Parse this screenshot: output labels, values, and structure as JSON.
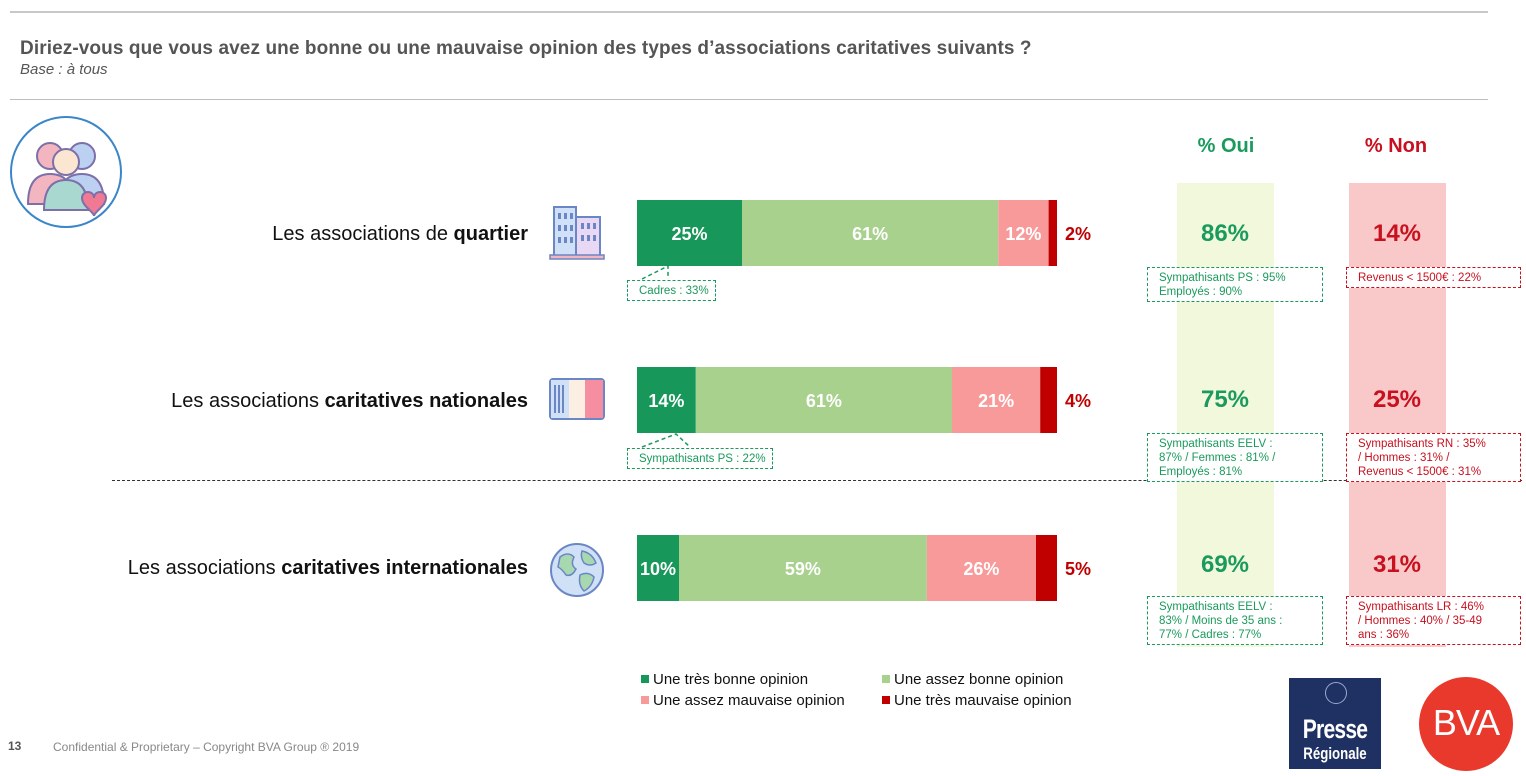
{
  "header": {
    "title": "Diriez-vous que vous avez une bonne ou une mauvaise opinion des types d’associations caritatives suivants ?",
    "subtitle": "Base : à tous"
  },
  "columns": {
    "oui": "% Oui",
    "non": "% Non"
  },
  "rows": [
    {
      "label_pre": "Les associations de ",
      "label_bold": "quartier",
      "icon": "buildings-icon",
      "oui": "86%",
      "non": "14%",
      "bar_note": "Cadres : 33%",
      "oui_note": [
        "Sympathisants PS : 95%",
        "Employés : 90%"
      ],
      "non_note": [
        "Revenus < 1500€ : 22%"
      ]
    },
    {
      "label_pre": "Les associations ",
      "label_bold": "caritatives nationales",
      "icon": "french-flag-icon",
      "oui": "75%",
      "non": "25%",
      "bar_note": "Sympathisants PS : 22%",
      "oui_note": [
        "Sympathisants EELV :",
        "87% / Femmes : 81% /",
        "Employés : 81%"
      ],
      "non_note": [
        "Sympathisants RN : 35%",
        "/ Hommes : 31% /",
        "Revenus < 1500€ : 31%"
      ]
    },
    {
      "label_pre": "Les associations ",
      "label_bold": "caritatives internationales",
      "icon": "globe-icon",
      "oui": "69%",
      "non": "31%",
      "bar_note": "",
      "oui_note": [
        "Sympathisants EELV :",
        "83% / Moins de 35 ans :",
        "77% / Cadres : 77%"
      ],
      "non_note": [
        "Sympathisants LR : 46%",
        "/ Hommes : 40% / 35-49",
        "ans : 36%"
      ]
    }
  ],
  "chart_data": {
    "type": "bar",
    "orientation": "horizontal",
    "stacked": true,
    "categories": [
      "Les associations de quartier",
      "Les associations caritatives nationales",
      "Les associations caritatives internationales"
    ],
    "series": [
      {
        "name": "Une très bonne opinion",
        "color": "#17975a",
        "values": [
          25,
          14,
          10
        ]
      },
      {
        "name": "Une assez bonne opinion",
        "color": "#a8d18d",
        "values": [
          61,
          61,
          59
        ]
      },
      {
        "name": "Une assez mauvaise opinion",
        "color": "#f89a9a",
        "values": [
          12,
          21,
          26
        ]
      },
      {
        "name": "Une très mauvaise opinion",
        "color": "#c00000",
        "values": [
          2,
          4,
          5
        ]
      }
    ],
    "value_labels": [
      [
        "25%",
        "61%",
        "12%",
        "2%"
      ],
      [
        "14%",
        "61%",
        "21%",
        "4%"
      ],
      [
        "10%",
        "59%",
        "26%",
        "5%"
      ]
    ],
    "xlim": [
      0,
      100
    ],
    "legend_position": "bottom"
  },
  "legend": [
    "Une très bonne opinion",
    "Une assez bonne opinion",
    "Une assez mauvaise opinion",
    "Une très mauvaise opinion"
  ],
  "footer": {
    "page": "13",
    "text": "Confidential & Proprietary – Copyright BVA Group ®  2019"
  },
  "logos": {
    "presse_top": "Presse",
    "presse_bottom": "Régionale",
    "bva": "BVA"
  }
}
